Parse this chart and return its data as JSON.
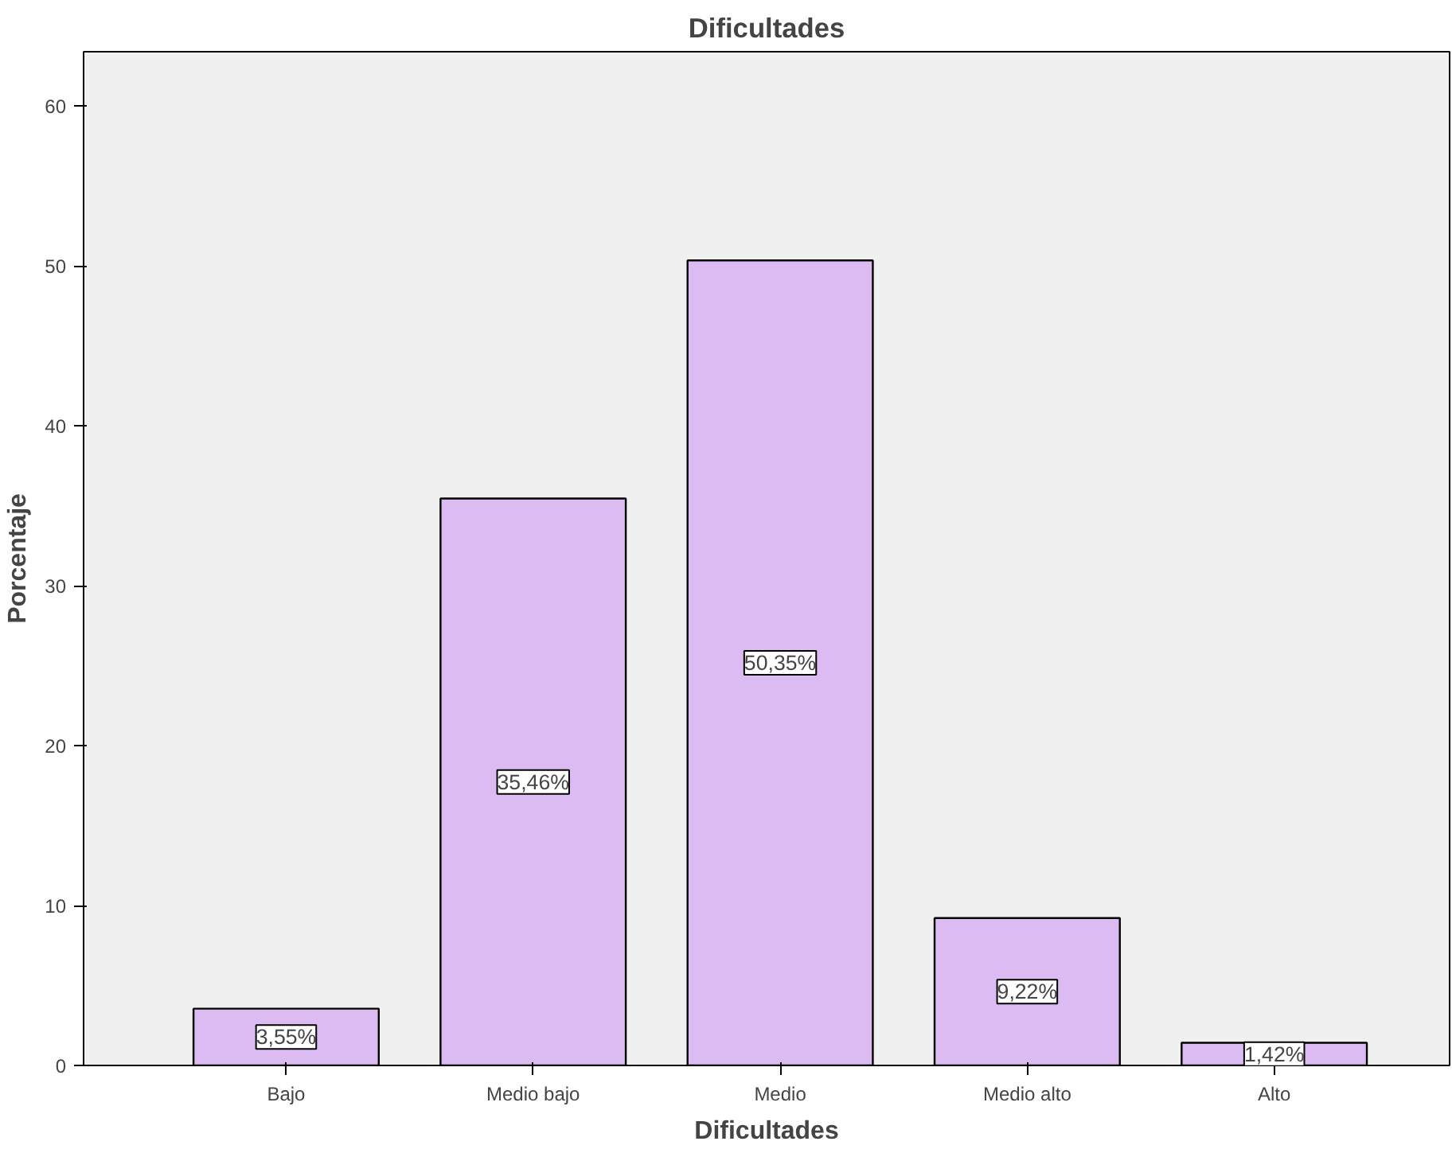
{
  "chart_data": {
    "type": "bar",
    "title": "Dificultades",
    "xlabel": "Dificultades",
    "ylabel": "Porcentaje",
    "categories": [
      "Bajo",
      "Medio bajo",
      "Medio",
      "Medio alto",
      "Alto"
    ],
    "values": [
      3.55,
      35.46,
      50.35,
      9.22,
      1.42
    ],
    "value_labels": [
      "3,55%",
      "35,46%",
      "50,35%",
      "9,22%",
      "1,42%"
    ],
    "color": "#dcbaf2",
    "ylim": [
      0,
      63.4
    ],
    "yticks": [
      0,
      10,
      20,
      30,
      40,
      50,
      60
    ],
    "grid": false
  }
}
